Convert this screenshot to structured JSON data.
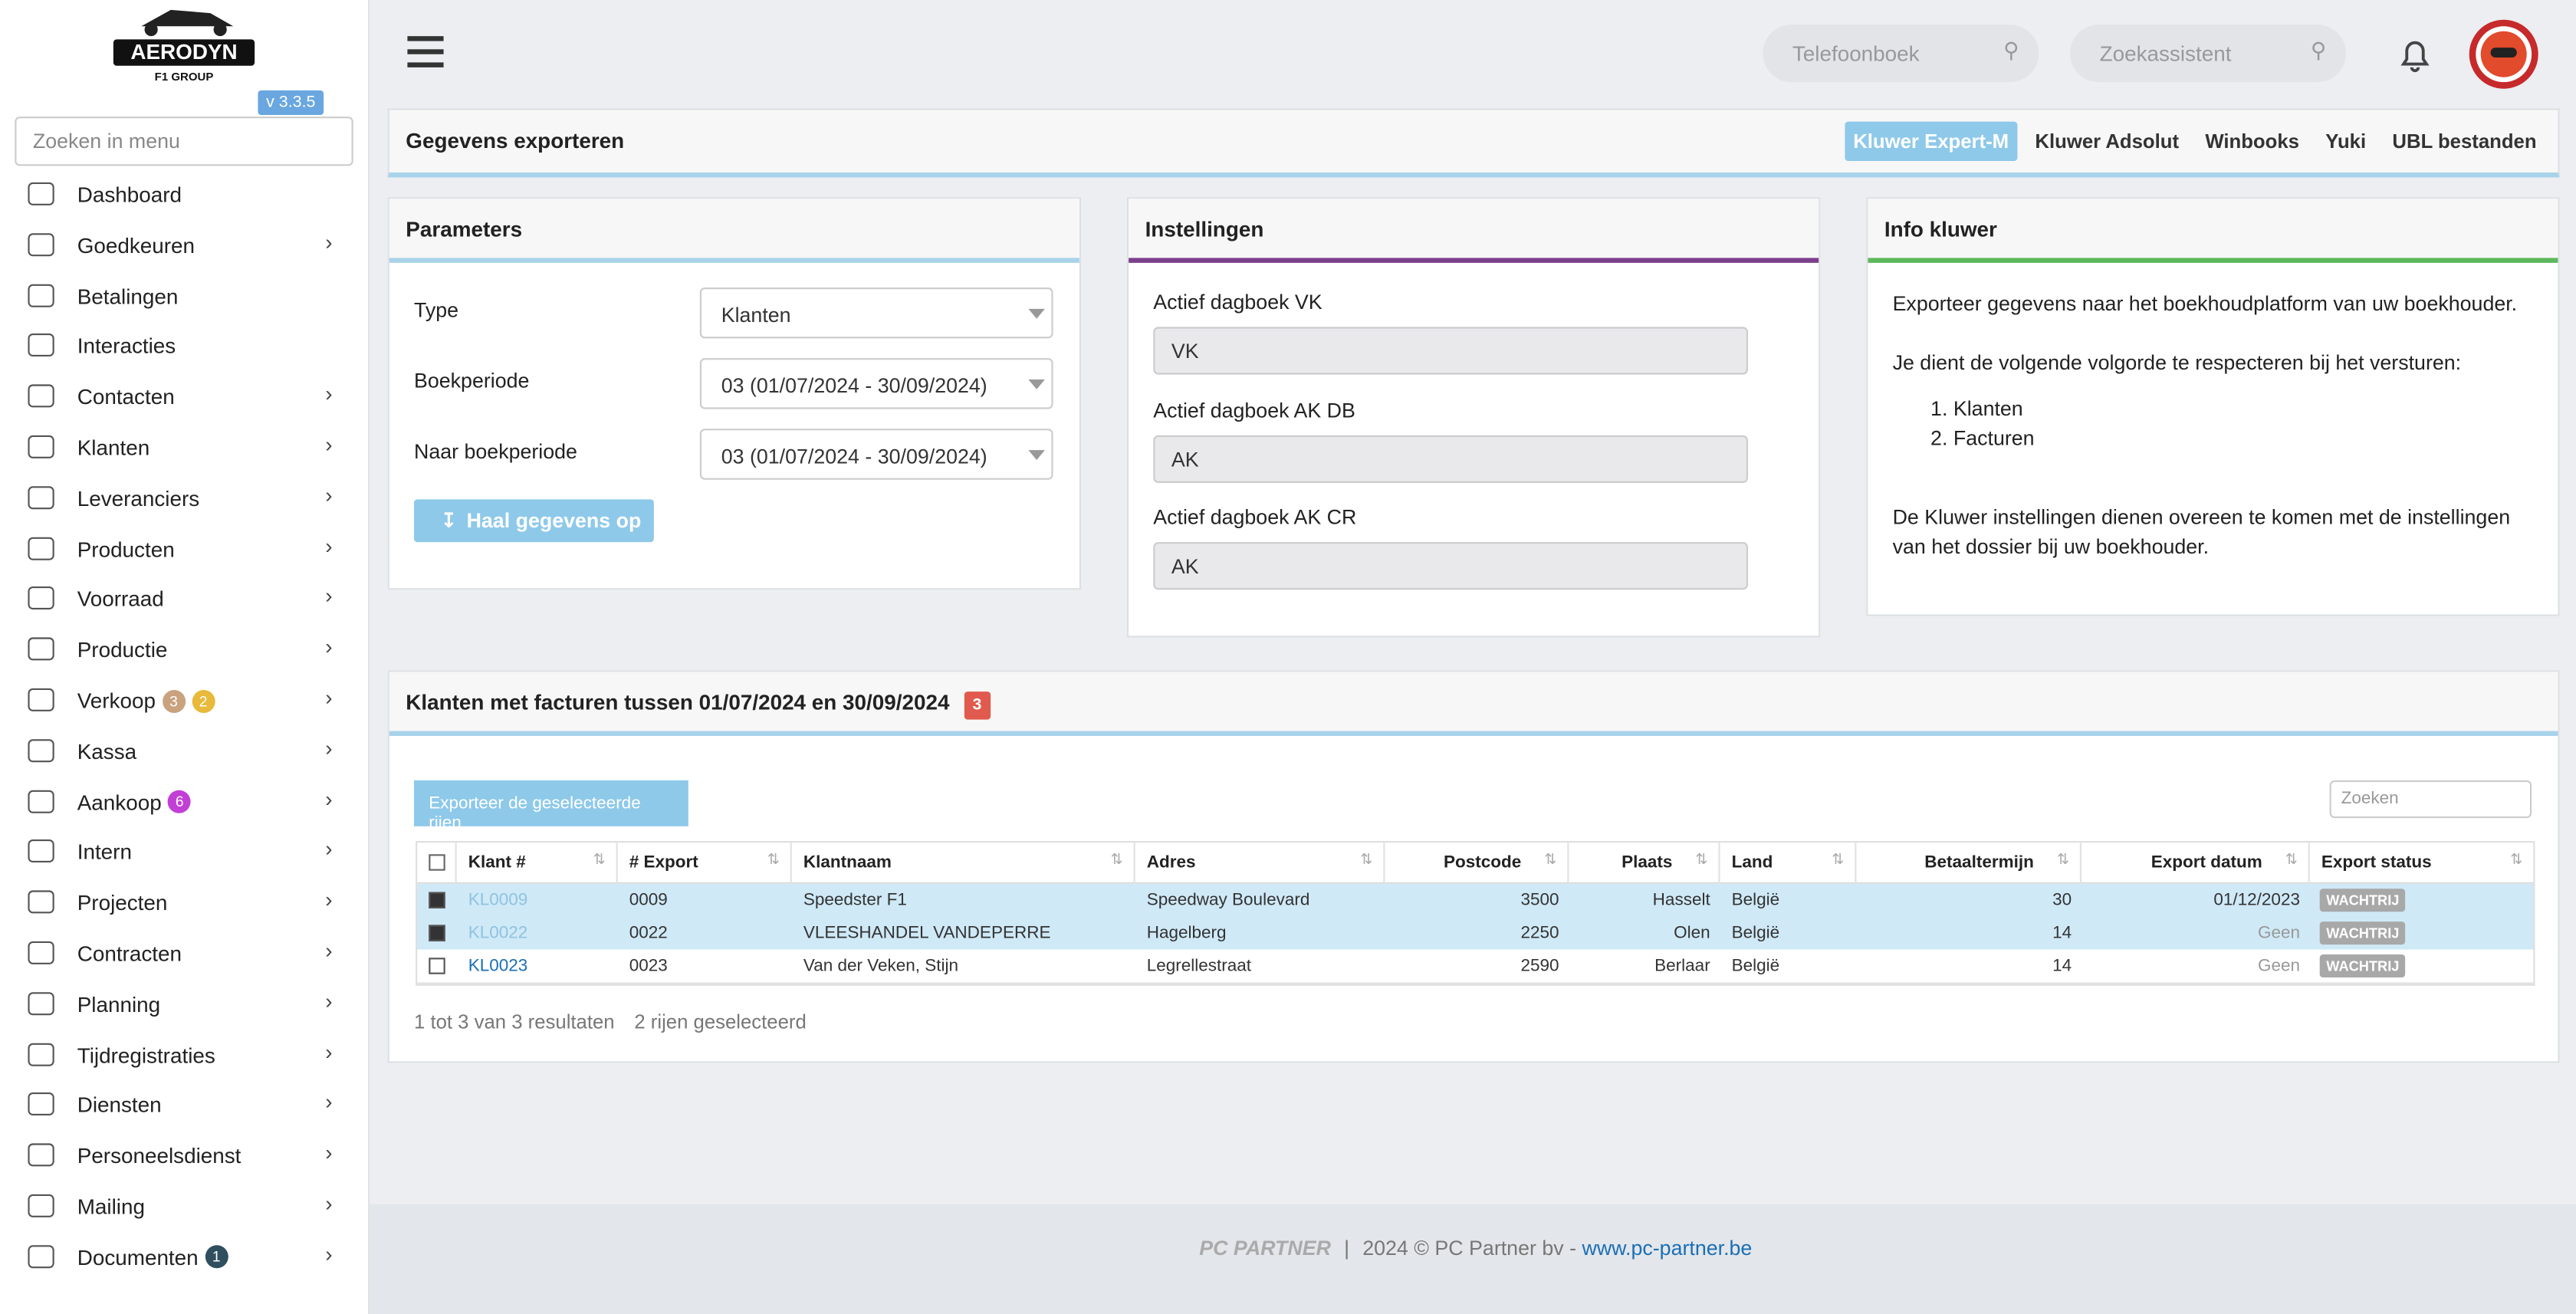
{
  "sidebar": {
    "logo": "AERODYN",
    "logo_sub": "F1 GROUP",
    "version": "v 3.3.5",
    "search_placeholder": "Zoeken in menu",
    "menu": [
      {
        "label": "Dashboard",
        "arrow": false,
        "badges": []
      },
      {
        "label": "Goedkeuren",
        "arrow": true,
        "badges": []
      },
      {
        "label": "Betalingen",
        "arrow": false,
        "badges": []
      },
      {
        "label": "Interacties",
        "arrow": false,
        "badges": []
      },
      {
        "label": "Contacten",
        "arrow": true,
        "badges": []
      },
      {
        "label": "Klanten",
        "arrow": true,
        "badges": []
      },
      {
        "label": "Leveranciers",
        "arrow": true,
        "badges": []
      },
      {
        "label": "Producten",
        "arrow": true,
        "badges": []
      },
      {
        "label": "Voorraad",
        "arrow": true,
        "badges": []
      },
      {
        "label": "Productie",
        "arrow": true,
        "badges": []
      },
      {
        "label": "Verkoop",
        "arrow": true,
        "badges": [
          {
            "value": 3,
            "color": "#c9a27e"
          },
          {
            "value": 2,
            "color": "#e8b93a"
          }
        ]
      },
      {
        "label": "Kassa",
        "arrow": true,
        "badges": []
      },
      {
        "label": "Aankoop",
        "arrow": true,
        "badges": [
          {
            "value": 6,
            "color": "#c23fd6"
          }
        ]
      },
      {
        "label": "Intern",
        "arrow": true,
        "badges": []
      },
      {
        "label": "Projecten",
        "arrow": true,
        "badges": []
      },
      {
        "label": "Contracten",
        "arrow": true,
        "badges": []
      },
      {
        "label": "Planning",
        "arrow": true,
        "badges": []
      },
      {
        "label": "Tijdregistraties",
        "arrow": true,
        "badges": []
      },
      {
        "label": "Diensten",
        "arrow": true,
        "badges": []
      },
      {
        "label": "Personeelsdienst",
        "arrow": true,
        "badges": []
      },
      {
        "label": "Mailing",
        "arrow": true,
        "badges": []
      },
      {
        "label": "Documenten",
        "arrow": true,
        "badges": [
          {
            "value": 1,
            "color": "#2f4f5e"
          }
        ]
      }
    ]
  },
  "topbar": {
    "phonebook_placeholder": "Telefoonboek",
    "assistant_placeholder": "Zoekassistent"
  },
  "export_header": {
    "title": "Gegevens exporteren",
    "tabs": [
      "Kluwer Expert-M",
      "Kluwer Adsolut",
      "Winbooks",
      "Yuki",
      "UBL bestanden"
    ],
    "active_tab": 0
  },
  "parameters": {
    "title": "Parameters",
    "fields": [
      {
        "label": "Type",
        "value": "Klanten"
      },
      {
        "label": "Boekperiode",
        "value": "03 (01/07/2024 - 30/09/2024)"
      },
      {
        "label": "Naar boekperiode",
        "value": "03 (01/07/2024 - 30/09/2024)"
      }
    ],
    "button": "Haal gegevens op"
  },
  "settings": {
    "title": "Instellingen",
    "fields": [
      {
        "label": "Actief dagboek VK",
        "value": "VK"
      },
      {
        "label": "Actief dagboek AK DB",
        "value": "AK"
      },
      {
        "label": "Actief dagboek AK CR",
        "value": "AK"
      }
    ]
  },
  "info": {
    "title": "Info kluwer",
    "intro": "Exporteer gegevens naar het boekhoudplatform van uw boekhouder.",
    "order_text": "Je dient de volgende volgorde te respecteren bij het versturen:",
    "order": [
      "Klanten",
      "Facturen"
    ],
    "note": "De Kluwer instellingen dienen overeen te komen met de instellingen van het dossier bij uw boekhouder."
  },
  "table": {
    "title": "Klanten met facturen tussen 01/07/2024 en 30/09/2024",
    "count": 3,
    "export_button": "Exporteer de geselecteerde rijen",
    "search_placeholder": "Zoeken",
    "columns": [
      "Klant #",
      "# Export",
      "Klantnaam",
      "Adres",
      "Postcode",
      "Plaats",
      "Land",
      "Betaaltermijn",
      "Export datum",
      "Export status"
    ],
    "rows": [
      {
        "selected": true,
        "cells": [
          "KL0009",
          "0009",
          "Speedster F1",
          "Speedway Boulevard",
          "3500",
          "Hasselt",
          "België",
          "30",
          "01/12/2023",
          "WACHTRIJ"
        ]
      },
      {
        "selected": true,
        "cells": [
          "KL0022",
          "0022",
          "VLEESHANDEL VANDEPERRE",
          "Hagelberg",
          "2250",
          "Olen",
          "België",
          "14",
          "Geen",
          "WACHTRIJ"
        ]
      },
      {
        "selected": false,
        "cells": [
          "KL0023",
          "0023",
          "Van der Veken, Stijn",
          "Legrellestraat",
          "2590",
          "Berlaar",
          "België",
          "14",
          "Geen",
          "WACHTRIJ"
        ]
      }
    ],
    "result_text": "1 tot 3 van 3 resultaten",
    "selected_text": "2 rijen geselecteerd"
  },
  "footer": {
    "brand": "PC PARTNER",
    "copyright": "2024 © PC Partner bv -",
    "link": "www.pc-partner.be"
  }
}
